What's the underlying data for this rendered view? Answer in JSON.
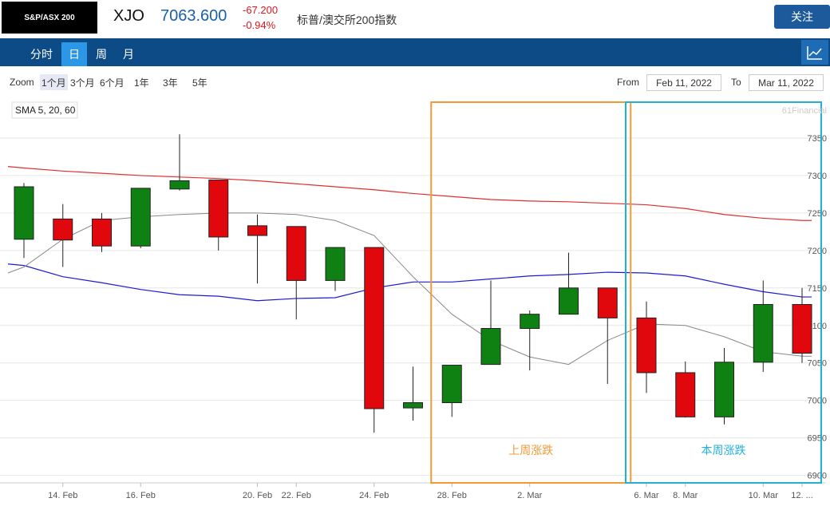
{
  "header": {
    "logo_text": "S&P/ASX 200",
    "symbol": "XJO",
    "price": "7063.600",
    "change": "-67.200",
    "change_pct": "-0.94%",
    "name": "标普/澳交所200指数",
    "follow_label": "关注"
  },
  "nav": {
    "tabs": [
      "分时",
      "日",
      "周",
      "月"
    ],
    "active_tab": "日",
    "chart_icon": "line-chart-icon"
  },
  "zoom": {
    "label": "Zoom",
    "options": [
      "1个月",
      "3个月",
      "6个月",
      "1年",
      "3年",
      "5年"
    ],
    "active": "1个月",
    "from_label": "From",
    "from_value": "Feb 11, 2022",
    "to_label": "To",
    "to_value": "Mar 11, 2022"
  },
  "chart_data": {
    "type": "candlestick",
    "legend_label": "SMA 5, 20, 60",
    "watermark": "61Financial",
    "y_ticks": [
      6900,
      6950,
      7000,
      7050,
      7100,
      7150,
      7200,
      7250,
      7300,
      7350
    ],
    "ylim": [
      6890,
      7400
    ],
    "x_labels": [
      {
        "i": 1,
        "label": "14. Feb"
      },
      {
        "i": 3,
        "label": "16. Feb"
      },
      {
        "i": 6,
        "label": "20. Feb"
      },
      {
        "i": 7,
        "label": "22. Feb"
      },
      {
        "i": 9,
        "label": "24. Feb"
      },
      {
        "i": 11,
        "label": "28. Feb"
      },
      {
        "i": 13,
        "label": "2. Mar"
      },
      {
        "i": 16,
        "label": "6. Mar"
      },
      {
        "i": 17,
        "label": "8. Mar"
      },
      {
        "i": 19,
        "label": "10. Mar"
      },
      {
        "i": 20,
        "label": "12. ..."
      }
    ],
    "candles": [
      {
        "o": 7215,
        "h": 7290,
        "l": 7190,
        "c": 7285
      },
      {
        "o": 7242,
        "h": 7262,
        "l": 7178,
        "c": 7214
      },
      {
        "o": 7242,
        "h": 7250,
        "l": 7198,
        "c": 7206
      },
      {
        "o": 7206,
        "h": 7283,
        "l": 7203,
        "c": 7283
      },
      {
        "o": 7282,
        "h": 7355,
        "l": 7280,
        "c": 7293
      },
      {
        "o": 7294,
        "h": 7294,
        "l": 7200,
        "c": 7218
      },
      {
        "o": 7233,
        "h": 7248,
        "l": 7156,
        "c": 7220
      },
      {
        "o": 7232,
        "h": 7232,
        "l": 7108,
        "c": 7160
      },
      {
        "o": 7160,
        "h": 7204,
        "l": 7146,
        "c": 7204
      },
      {
        "o": 7204,
        "h": 7204,
        "l": 6957,
        "c": 6989
      },
      {
        "o": 6990,
        "h": 7045,
        "l": 6973,
        "c": 6997
      },
      {
        "o": 6997,
        "h": 7047,
        "l": 6978,
        "c": 7047
      },
      {
        "o": 7048,
        "h": 7160,
        "l": 7048,
        "c": 7096
      },
      {
        "o": 7096,
        "h": 7120,
        "l": 7040,
        "c": 7115
      },
      {
        "o": 7115,
        "h": 7197,
        "l": 7115,
        "c": 7150
      },
      {
        "o": 7150,
        "h": 7150,
        "l": 7022,
        "c": 7110
      },
      {
        "o": 7110,
        "h": 7132,
        "l": 7010,
        "c": 7037
      },
      {
        "o": 7037,
        "h": 7052,
        "l": 6977,
        "c": 6978
      },
      {
        "o": 6978,
        "h": 7070,
        "l": 6968,
        "c": 7051
      },
      {
        "o": 7051,
        "h": 7160,
        "l": 7038,
        "c": 7128
      },
      {
        "o": 7128,
        "h": 7150,
        "l": 7050,
        "c": 7063
      }
    ],
    "series": [
      {
        "values": [
          7310,
          7306,
          7303,
          7300,
          7298,
          7296,
          7293,
          7289,
          7285,
          7281,
          7276,
          7272,
          7268,
          7266,
          7265,
          7263,
          7261,
          7256,
          7248,
          7243,
          7240
        ]
      },
      {
        "values": [
          7180,
          7165,
          7157,
          7148,
          7141,
          7139,
          7133,
          7136,
          7137,
          7150,
          7158,
          7158,
          7162,
          7166,
          7168,
          7171,
          7170,
          7166,
          7155,
          7145,
          7138
        ]
      },
      {
        "values": [
          7178,
          7215,
          7240,
          7245,
          7248,
          7250,
          7250,
          7248,
          7240,
          7220,
          7165,
          7115,
          7080,
          7058,
          7048,
          7080,
          7102,
          7100,
          7085,
          7065,
          7059
        ]
      }
    ],
    "annotations": [
      {
        "label": "上周涨跌",
        "from_i": 11,
        "to_i": 15,
        "color": "#f39a36"
      },
      {
        "label": "本周涨跌",
        "from_i": 16,
        "to_i": 20,
        "color": "#22b0d8"
      }
    ],
    "colors": {
      "up": "#0f8012",
      "down": "#e0080d",
      "sma5": "#888888",
      "sma20": "#1b1bd6",
      "sma60": "#e03030"
    }
  }
}
